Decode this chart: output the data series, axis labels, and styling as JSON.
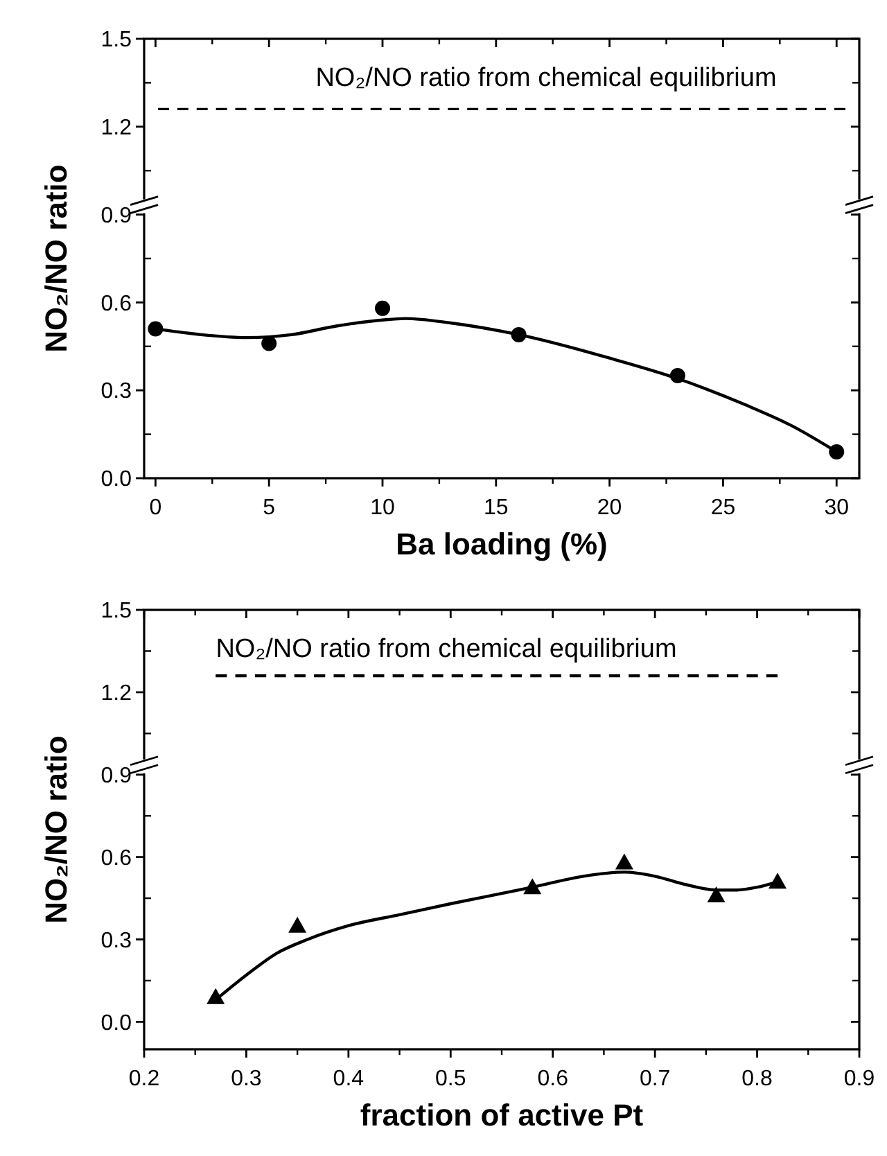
{
  "chart_data": [
    {
      "type": "scatter",
      "xlabel": "Ba loading (%)",
      "ylabel": "NO₂/NO ratio",
      "annotations": [
        "NO₂/NO ratio from chemical equilibrium"
      ],
      "xlim": [
        -0.5,
        31
      ],
      "xticks": [
        0,
        5,
        10,
        15,
        20,
        25,
        30
      ],
      "ylim": [
        0,
        1.5
      ],
      "yticks": [
        {
          "value": 0,
          "label": "0.0"
        },
        0.3,
        0.6,
        0.9,
        1.2,
        1.5
      ],
      "grid": false,
      "ref_lines": [
        {
          "axis": "y",
          "value": 1.26,
          "label": null,
          "color": "#000000",
          "line_style": "dashed"
        }
      ],
      "series": [
        {
          "type": "scatter",
          "color": "#000000",
          "marker": "circle",
          "x": [
            0,
            5,
            10,
            16,
            23,
            30
          ],
          "values": [
            0.51,
            0.46,
            0.58,
            0.49,
            0.35,
            0.09
          ]
        },
        {
          "type": "line",
          "color": "#000000",
          "marker": "none",
          "line_style": "solid",
          "x": [
            0,
            2,
            4,
            6,
            8,
            10,
            11,
            13,
            16,
            20,
            23,
            26,
            28,
            30
          ],
          "values": [
            0.51,
            0.49,
            0.48,
            0.49,
            0.52,
            0.54,
            0.545,
            0.53,
            0.49,
            0.41,
            0.34,
            0.25,
            0.18,
            0.09
          ]
        }
      ]
    },
    {
      "type": "scatter",
      "xlabel": "fraction of active Pt",
      "ylabel": "NO₂/NO ratio",
      "annotations": [
        "NO₂/NO ratio from chemical equilibrium"
      ],
      "xlim": [
        0.2,
        0.9
      ],
      "xticks": [
        0.2,
        0.3,
        0.4,
        0.5,
        0.6,
        0.7,
        0.8,
        0.9
      ],
      "ylim": [
        -0.1,
        1.5
      ],
      "yticks": [
        {
          "value": 0,
          "label": "0.0"
        },
        0.3,
        0.6,
        0.9,
        1.2,
        1.5
      ],
      "grid": false,
      "series": [
        {
          "type": "scatter",
          "color": "#000000",
          "marker": "triangle",
          "x": [
            0.27,
            0.35,
            0.58,
            0.67,
            0.76,
            0.82
          ],
          "values": [
            0.09,
            0.35,
            0.49,
            0.58,
            0.46,
            0.51
          ]
        },
        {
          "type": "line",
          "color": "#000000",
          "marker": "none",
          "line_style": "solid",
          "x": [
            0.27,
            0.3,
            0.33,
            0.36,
            0.4,
            0.45,
            0.5,
            0.58,
            0.63,
            0.67,
            0.7,
            0.73,
            0.76,
            0.78,
            0.8,
            0.82
          ],
          "values": [
            0.08,
            0.17,
            0.25,
            0.3,
            0.35,
            0.39,
            0.43,
            0.49,
            0.53,
            0.545,
            0.53,
            0.5,
            0.48,
            0.48,
            0.49,
            0.51
          ]
        },
        {
          "type": "line",
          "color": "#000000",
          "marker": "none",
          "line_style": "dashed",
          "x": [
            0.27,
            0.82
          ],
          "values": [
            1.26,
            1.26
          ]
        }
      ]
    }
  ]
}
